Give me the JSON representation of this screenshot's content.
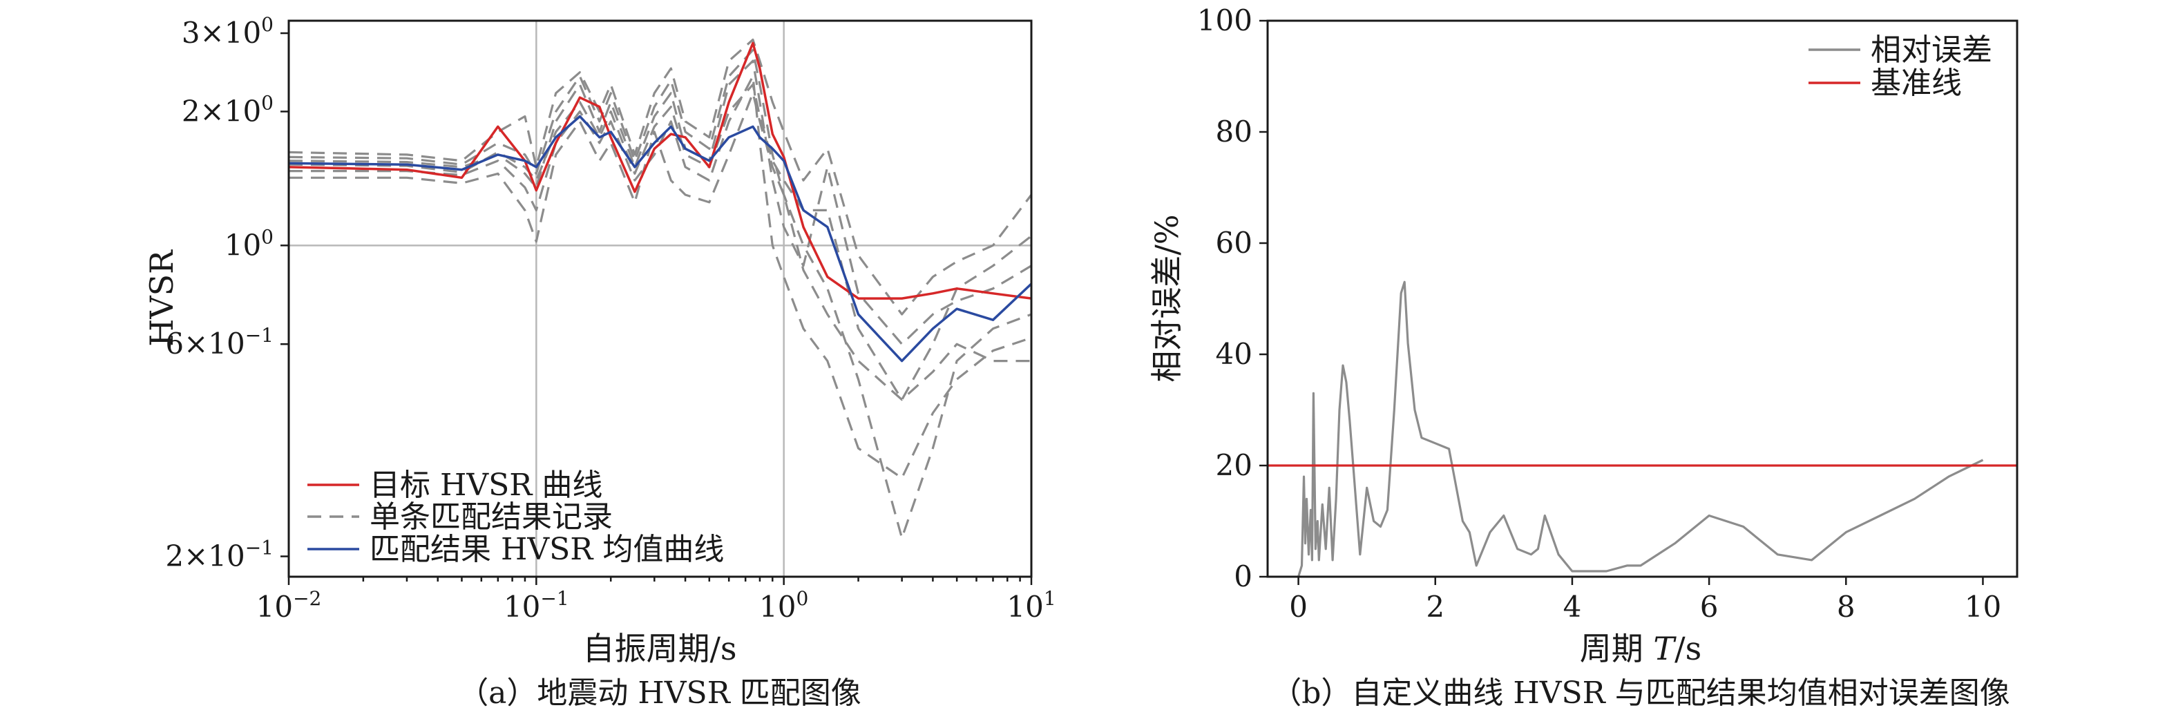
{
  "colors": {
    "target": "#d62728",
    "single": "#8c8c8c",
    "mean": "#2a4aa0",
    "rel_err": "#8c8c8c",
    "baseline": "#d62728"
  },
  "chart_data": [
    {
      "id": "a",
      "type": "line",
      "caption": "（a）地震动 HVSR 匹配图像",
      "xlabel": "自振周期/s",
      "ylabel": "HVSR",
      "xscale": "log",
      "yscale": "log",
      "xlim": [
        0.01,
        10
      ],
      "ylim": [
        0.18,
        3.2
      ],
      "grid": true,
      "legend_position": "lower-left",
      "x_ticks": [
        {
          "value": 0.01,
          "base": "10",
          "exp": "−2"
        },
        {
          "value": 0.1,
          "base": "10",
          "exp": "−1"
        },
        {
          "value": 1,
          "base": "10",
          "exp": "0"
        },
        {
          "value": 10,
          "base": "10",
          "exp": "1"
        }
      ],
      "y_ticks": [
        {
          "value": 0.2,
          "base": "2×10",
          "exp": "−1"
        },
        {
          "value": 0.6,
          "base": "6×10",
          "exp": "−1"
        },
        {
          "value": 1,
          "base": "10",
          "exp": "0"
        },
        {
          "value": 2,
          "base": "2×10",
          "exp": "0"
        },
        {
          "value": 3,
          "base": "3×10",
          "exp": "0"
        }
      ],
      "series": [
        {
          "name": "目标 HVSR 曲线",
          "style": "target",
          "x": [
            0.01,
            0.03,
            0.05,
            0.07,
            0.09,
            0.1,
            0.12,
            0.15,
            0.18,
            0.2,
            0.25,
            0.3,
            0.35,
            0.4,
            0.5,
            0.6,
            0.75,
            0.8,
            0.9,
            1.0,
            1.2,
            1.5,
            2.0,
            3.0,
            4.0,
            5.0,
            7.0,
            10.0
          ],
          "y": [
            1.5,
            1.48,
            1.42,
            1.85,
            1.55,
            1.33,
            1.7,
            2.15,
            2.05,
            1.75,
            1.32,
            1.65,
            1.78,
            1.75,
            1.5,
            2.1,
            2.85,
            2.5,
            1.78,
            1.58,
            1.1,
            0.85,
            0.76,
            0.76,
            0.78,
            0.8,
            0.78,
            0.76
          ]
        },
        {
          "name": "单条匹配结果记录",
          "style": "single",
          "x": [
            0.01,
            0.03,
            0.05,
            0.07,
            0.09,
            0.1,
            0.12,
            0.15,
            0.18,
            0.2,
            0.25,
            0.3,
            0.35,
            0.4,
            0.5,
            0.6,
            0.75,
            0.8,
            0.9,
            1.0,
            1.2,
            1.5,
            2.0,
            3.0,
            4.0,
            5.0,
            7.0,
            10.0
          ],
          "y": [
            1.62,
            1.6,
            1.55,
            1.8,
            1.95,
            1.5,
            2.2,
            2.45,
            2.0,
            2.3,
            1.6,
            2.2,
            2.5,
            1.9,
            1.75,
            2.6,
            2.9,
            2.6,
            2.1,
            1.8,
            1.4,
            1.65,
            0.95,
            0.7,
            0.85,
            0.92,
            1.0,
            1.3
          ]
        },
        {
          "name": "",
          "style": "single",
          "x": [
            0.01,
            0.03,
            0.05,
            0.07,
            0.09,
            0.1,
            0.12,
            0.15,
            0.18,
            0.2,
            0.25,
            0.3,
            0.35,
            0.4,
            0.5,
            0.6,
            0.75,
            0.8,
            0.9,
            1.0,
            1.2,
            1.5,
            2.0,
            3.0,
            4.0,
            5.0,
            7.0,
            10.0
          ],
          "y": [
            1.42,
            1.42,
            1.38,
            1.45,
            1.2,
            1.02,
            1.6,
            1.9,
            1.55,
            1.7,
            1.25,
            1.8,
            1.4,
            1.3,
            1.25,
            1.6,
            2.2,
            1.9,
            1.5,
            1.3,
            0.88,
            0.7,
            0.55,
            0.45,
            0.52,
            0.6,
            0.55,
            0.55
          ]
        },
        {
          "name": "",
          "style": "single",
          "x": [
            0.01,
            0.03,
            0.05,
            0.07,
            0.09,
            0.1,
            0.12,
            0.15,
            0.18,
            0.2,
            0.25,
            0.3,
            0.35,
            0.4,
            0.5,
            0.6,
            0.75,
            0.8,
            0.9,
            1.0,
            1.2,
            1.5,
            2.0,
            3.0,
            4.0,
            5.0,
            7.0,
            10.0
          ],
          "y": [
            1.55,
            1.54,
            1.5,
            1.6,
            1.45,
            1.35,
            1.9,
            2.3,
            1.8,
            2.1,
            1.5,
            1.95,
            2.2,
            1.65,
            1.55,
            2.3,
            2.6,
            2.1,
            1.4,
            1.1,
            0.9,
            1.5,
            0.78,
            0.6,
            0.7,
            0.75,
            0.8,
            0.9
          ]
        },
        {
          "name": "",
          "style": "single",
          "x": [
            0.01,
            0.03,
            0.05,
            0.07,
            0.09,
            0.1,
            0.12,
            0.15,
            0.18,
            0.2,
            0.25,
            0.3,
            0.35,
            0.4,
            0.5,
            0.6,
            0.75,
            0.8,
            0.9,
            1.0,
            1.2,
            1.5,
            2.0,
            3.0,
            4.0,
            5.0,
            7.0,
            10.0
          ],
          "y": [
            1.47,
            1.47,
            1.44,
            1.55,
            1.35,
            1.2,
            1.7,
            2.0,
            1.7,
            1.9,
            1.4,
            1.6,
            1.9,
            1.5,
            1.4,
            1.9,
            2.4,
            1.7,
            1.0,
            0.85,
            0.65,
            0.55,
            0.35,
            0.3,
            0.42,
            0.5,
            0.58,
            0.62
          ]
        },
        {
          "name": "",
          "style": "single",
          "x": [
            0.01,
            0.03,
            0.05,
            0.07,
            0.09,
            0.1,
            0.12,
            0.15,
            0.18,
            0.2,
            0.25,
            0.3,
            0.35,
            0.4,
            0.5,
            0.6,
            0.75,
            0.8,
            0.9,
            1.0,
            1.2,
            1.5,
            2.0,
            3.0,
            4.0,
            5.0,
            7.0,
            10.0
          ],
          "y": [
            1.58,
            1.57,
            1.52,
            1.7,
            1.6,
            1.45,
            2.0,
            2.4,
            1.9,
            2.2,
            1.55,
            2.05,
            2.35,
            1.8,
            1.65,
            2.4,
            2.75,
            2.3,
            1.6,
            1.3,
            1.0,
            0.8,
            0.5,
            0.22,
            0.35,
            0.55,
            0.65,
            0.7
          ]
        },
        {
          "name": "",
          "style": "single",
          "x": [
            0.01,
            0.03,
            0.05,
            0.07,
            0.09,
            0.1,
            0.12,
            0.15,
            0.18,
            0.2,
            0.25,
            0.3,
            0.35,
            0.4,
            0.5,
            0.6,
            0.75,
            0.8,
            0.9,
            1.0,
            1.2,
            1.5,
            2.0,
            3.0,
            4.0,
            5.0,
            7.0,
            10.0
          ],
          "y": [
            1.52,
            1.51,
            1.46,
            1.62,
            1.5,
            1.4,
            1.8,
            2.1,
            1.75,
            2.0,
            1.45,
            1.85,
            2.05,
            1.6,
            1.5,
            2.0,
            2.3,
            1.95,
            1.55,
            1.4,
            1.2,
            1.2,
            0.65,
            0.45,
            0.6,
            0.8,
            0.9,
            1.05
          ]
        },
        {
          "name": "匹配结果 HVSR 均值曲线",
          "style": "mean",
          "x": [
            0.01,
            0.03,
            0.05,
            0.07,
            0.09,
            0.1,
            0.12,
            0.15,
            0.18,
            0.2,
            0.25,
            0.3,
            0.35,
            0.4,
            0.5,
            0.6,
            0.75,
            0.8,
            0.9,
            1.0,
            1.2,
            1.5,
            2.0,
            3.0,
            4.0,
            5.0,
            7.0,
            10.0
          ],
          "y": [
            1.53,
            1.52,
            1.48,
            1.6,
            1.55,
            1.5,
            1.75,
            1.95,
            1.75,
            1.8,
            1.5,
            1.7,
            1.85,
            1.65,
            1.55,
            1.75,
            1.85,
            1.75,
            1.65,
            1.55,
            1.2,
            1.1,
            0.7,
            0.55,
            0.65,
            0.72,
            0.68,
            0.82
          ]
        }
      ]
    },
    {
      "id": "b",
      "type": "line",
      "caption": "（b）自定义曲线 HVSR 与匹配结果均值相对误差图像",
      "xlabel": "周期",
      "xlabel_var": "T",
      "xlabel_unit": "/s",
      "ylabel": "相对误差/%",
      "xlim": [
        -0.45,
        10.5
      ],
      "ylim": [
        0,
        100
      ],
      "grid": false,
      "legend_position": "top-right",
      "x_ticks": [
        0,
        2,
        4,
        6,
        8,
        10
      ],
      "y_ticks": [
        0,
        20,
        40,
        60,
        80,
        100
      ],
      "series": [
        {
          "name": "相对误差",
          "style": "rel_err",
          "x": [
            0,
            0.05,
            0.08,
            0.1,
            0.12,
            0.15,
            0.18,
            0.2,
            0.22,
            0.25,
            0.28,
            0.3,
            0.35,
            0.4,
            0.45,
            0.5,
            0.55,
            0.6,
            0.65,
            0.7,
            0.75,
            0.8,
            0.9,
            1.0,
            1.1,
            1.2,
            1.3,
            1.4,
            1.5,
            1.55,
            1.6,
            1.7,
            1.8,
            2.0,
            2.2,
            2.4,
            2.5,
            2.6,
            2.8,
            3.0,
            3.2,
            3.4,
            3.5,
            3.6,
            3.8,
            4.0,
            4.2,
            4.5,
            4.8,
            5.0,
            5.5,
            6.0,
            6.5,
            7.0,
            7.5,
            8.0,
            8.5,
            9.0,
            9.5,
            10.0
          ],
          "y": [
            0,
            2,
            18,
            6,
            14,
            4,
            12,
            3,
            33,
            5,
            10,
            3,
            13,
            5,
            16,
            3,
            14,
            30,
            38,
            35,
            28,
            20,
            4,
            16,
            10,
            9,
            12,
            30,
            51,
            53,
            42,
            30,
            25,
            24,
            23,
            10,
            8,
            2,
            8,
            11,
            5,
            4,
            5,
            11,
            4,
            1,
            1,
            1,
            2,
            2,
            6,
            11,
            9,
            4,
            3,
            8,
            11,
            14,
            18,
            21
          ]
        },
        {
          "name": "基准线",
          "style": "baseline",
          "x": [
            -0.45,
            10.5
          ],
          "y": [
            20,
            20
          ]
        }
      ]
    }
  ]
}
